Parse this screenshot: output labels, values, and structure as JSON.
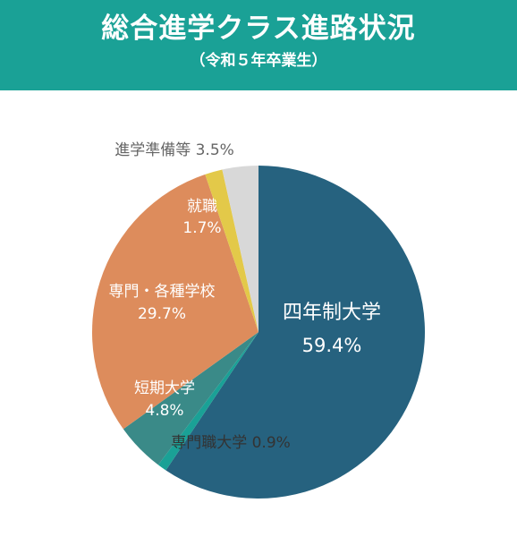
{
  "header": {
    "title": "総合進学クラス進路状況",
    "subtitle": "（令和５年卒業生）"
  },
  "colors": {
    "header_bg": "#1aa196",
    "四年制大学": "#26627f",
    "専門職大学": "#1aa196",
    "短期大学": "#3a8a88",
    "専門・各種学校": "#dd8c5c",
    "就職": "#e3c949",
    "進学準備等": "#d8d8d8"
  },
  "chart_data": {
    "type": "pie",
    "start": "top",
    "direction": "clockwise",
    "slices": [
      {
        "name": "四年制大学",
        "value": 59.4,
        "display": "59.4%"
      },
      {
        "name": "専門職大学",
        "value": 0.9,
        "display": "0.9%"
      },
      {
        "name": "短期大学",
        "value": 4.8,
        "display": "4.8%"
      },
      {
        "name": "専門・各種学校",
        "value": 29.7,
        "display": "29.7%"
      },
      {
        "name": "就職",
        "value": 1.7,
        "display": "1.7%"
      },
      {
        "name": "進学準備等",
        "value": 3.5,
        "display": "3.5%"
      }
    ]
  }
}
